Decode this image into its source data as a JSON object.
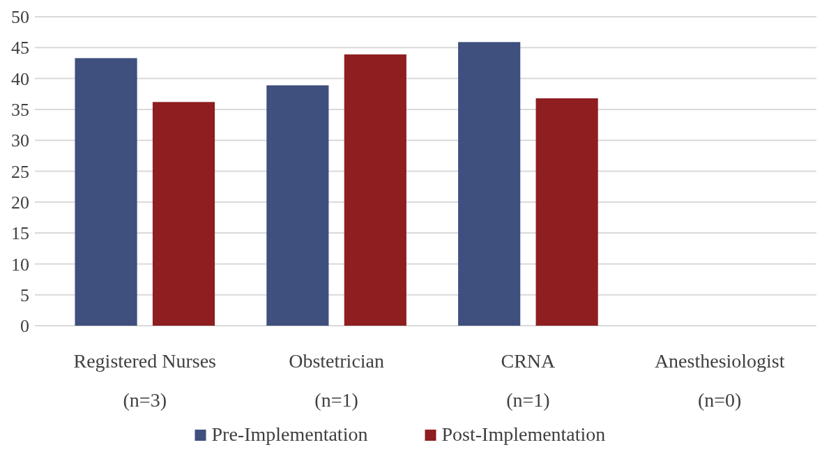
{
  "chart_data": {
    "type": "bar",
    "categories": [
      "Registered Nurses\n(n=3)",
      "Obstetrician\n(n=1)",
      "CRNA\n(n=1)",
      "Anesthesiologist\n(n=0)"
    ],
    "series": [
      {
        "name": "Pre-Implementation",
        "color": "#3f4f7e",
        "values": [
          43.3,
          38.9,
          45.9,
          null
        ]
      },
      {
        "name": "Post-Implementation",
        "color": "#8e1e20",
        "values": [
          36.2,
          43.9,
          36.8,
          null
        ]
      }
    ],
    "ylim": [
      0,
      50
    ],
    "yticks": [
      0,
      5,
      10,
      15,
      20,
      25,
      30,
      35,
      40,
      45,
      50
    ],
    "grid": "y",
    "legend": "bottom"
  }
}
